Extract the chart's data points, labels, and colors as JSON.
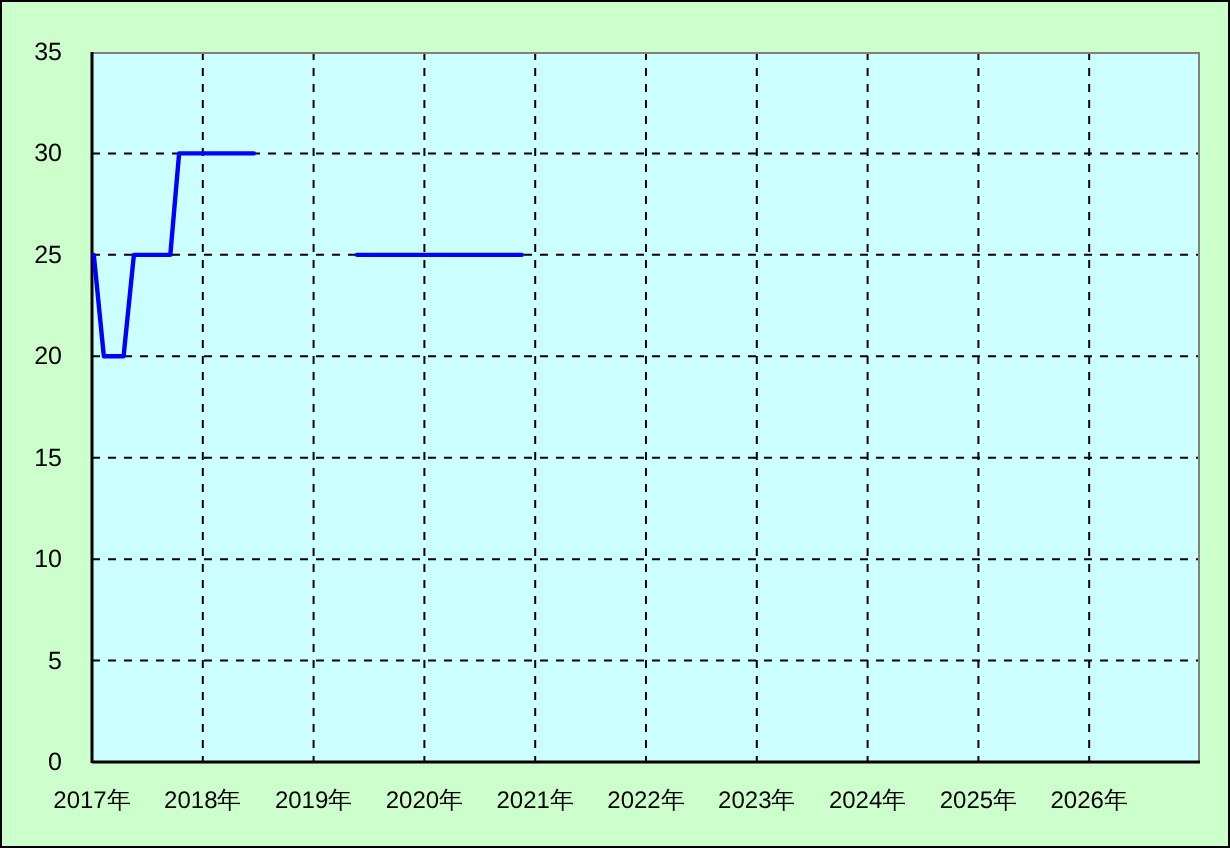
{
  "chart_data": {
    "type": "line",
    "series": [
      {
        "color": "#0000ff",
        "x": [
          "2017-01-07",
          "2017-02-09",
          "2017-04-15",
          "2017-05-19",
          "2017-09-16",
          "2017-10-15",
          "2018-06-18"
        ],
        "values": [
          25,
          20,
          20,
          25,
          25,
          30,
          30
        ]
      },
      {
        "color": "#0000ff",
        "x": [
          "2019-05-24",
          "2020-11-18"
        ],
        "values": [
          25,
          25
        ]
      }
    ],
    "xlim": [
      "2017",
      "2027"
    ],
    "xticks": [
      {
        "value": "2017",
        "label": "2017年"
      },
      {
        "value": "2018",
        "label": "2018年"
      },
      {
        "value": "2019",
        "label": "2019年"
      },
      {
        "value": "2020",
        "label": "2020年"
      },
      {
        "value": "2021",
        "label": "2021年"
      },
      {
        "value": "2022",
        "label": "2022年"
      },
      {
        "value": "2023",
        "label": "2023年"
      },
      {
        "value": "2024",
        "label": "2024年"
      },
      {
        "value": "2025",
        "label": "2025年"
      },
      {
        "value": "2026",
        "label": "2026年"
      }
    ],
    "ylim": [
      0,
      35
    ],
    "yticks": [
      0,
      5,
      10,
      15,
      20,
      25,
      30,
      35
    ],
    "grid": true,
    "line_style": "solid"
  }
}
